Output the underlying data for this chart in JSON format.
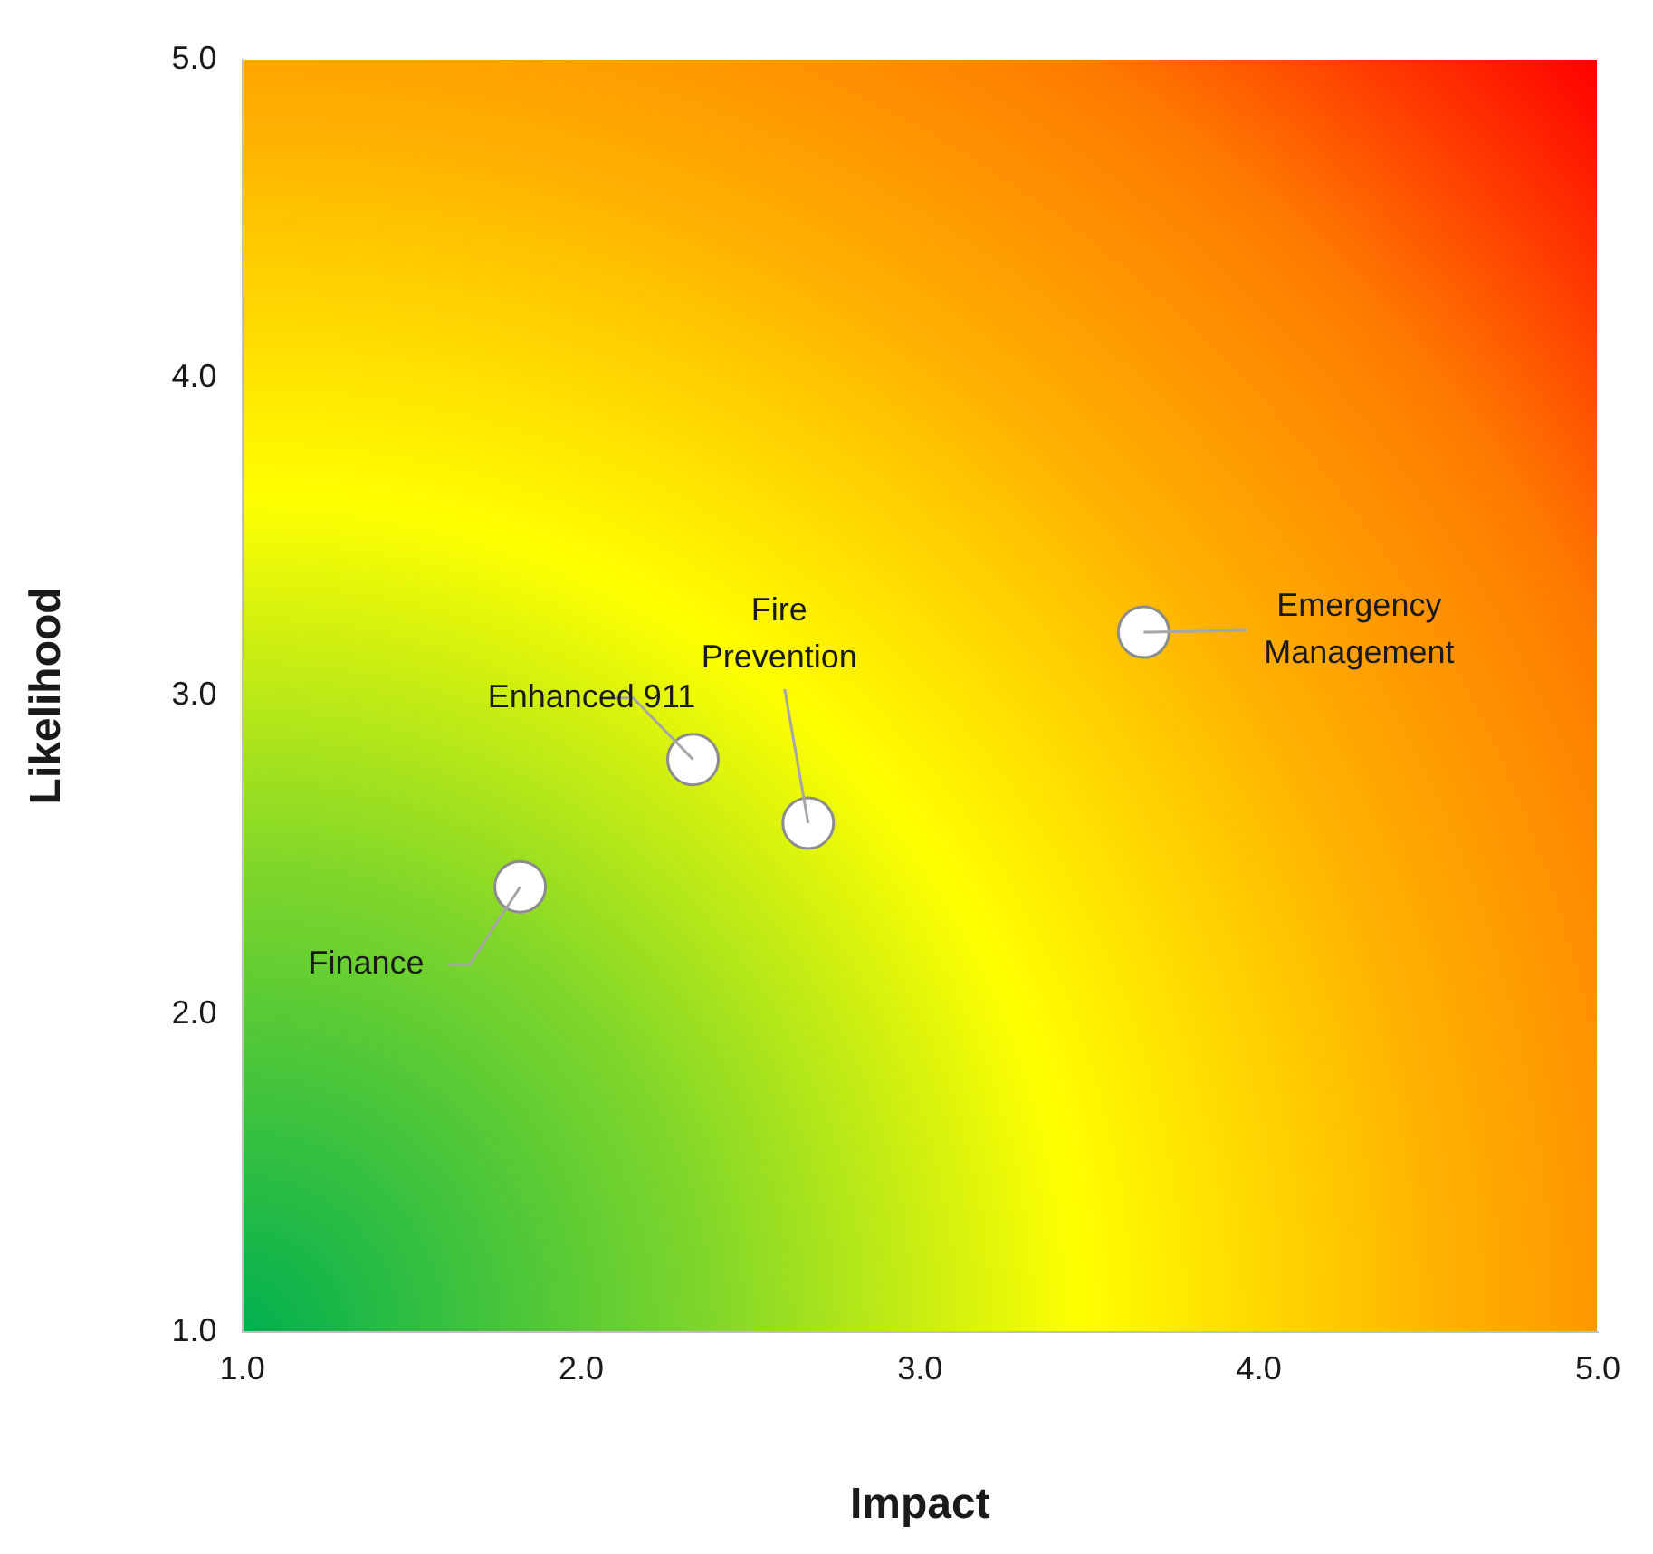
{
  "chart_data": {
    "type": "scatter",
    "xlabel": "Impact",
    "ylabel": "Likelihood",
    "series": [
      {
        "color": "#ffffff",
        "x": [
          1.82,
          2.33,
          2.67,
          3.66
        ],
        "values": [
          2.4,
          2.8,
          2.6,
          3.2
        ]
      }
    ],
    "xlim": [
      1,
      5
    ],
    "ylim": [
      1,
      5
    ],
    "xticks": [
      {
        "value": 1,
        "label": "1.0"
      },
      {
        "value": 2,
        "label": "2.0"
      },
      {
        "value": 3,
        "label": "3.0"
      },
      {
        "value": 4,
        "label": "4.0"
      },
      {
        "value": 5,
        "label": "5.0"
      }
    ],
    "yticks": [
      {
        "value": 1,
        "label": "1.0"
      },
      {
        "value": 2,
        "label": "2.0"
      },
      {
        "value": 3,
        "label": "3.0"
      },
      {
        "value": 4,
        "label": "4.0"
      },
      {
        "value": 5,
        "label": "5.0"
      }
    ],
    "annotations": [
      {
        "text": "Finance",
        "x": 1.82,
        "y": 2.4
      },
      {
        "text": "Enhanced 911",
        "x": 2.33,
        "y": 2.8
      },
      {
        "text": "Fire Prevention",
        "x": 2.67,
        "y": 2.6
      },
      {
        "text": "Emergency Management",
        "x": 3.66,
        "y": 3.2
      }
    ],
    "marker": "circle",
    "grid": false,
    "legend": false
  }
}
